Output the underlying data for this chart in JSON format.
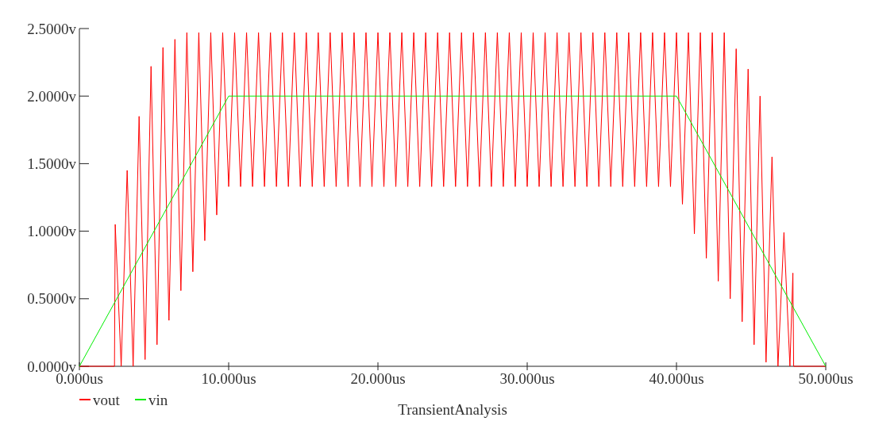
{
  "chart_data": {
    "type": "line",
    "xlabel": "TransientAnalysis",
    "legend": "bottom left",
    "grid": false,
    "line_style": "solid",
    "xlim": [
      0,
      50
    ],
    "xticks": [
      {
        "value": 0,
        "label": "0.000us"
      },
      {
        "value": 10,
        "label": "10.000us"
      },
      {
        "value": 20,
        "label": "20.000us"
      },
      {
        "value": 30,
        "label": "30.000us"
      },
      {
        "value": 40,
        "label": "40.000us"
      },
      {
        "value": 50,
        "label": "50.000us"
      }
    ],
    "ylim": [
      0,
      2.5
    ],
    "yticks": [
      {
        "value": 0,
        "label": "0.0000v"
      },
      {
        "value": 0.5,
        "label": "0.5000v"
      },
      {
        "value": 1,
        "label": "1.0000v"
      },
      {
        "value": 1.5,
        "label": "1.5000v"
      },
      {
        "value": 2,
        "label": "2.0000v"
      },
      {
        "value": 2.5,
        "label": "2.5000v"
      }
    ],
    "series": [
      {
        "name": "vout",
        "color": "#ff0000",
        "x": [
          0,
          2.35,
          2.4,
          2.8,
          3.2,
          3.6,
          4.0,
          4.4,
          4.8,
          5.2,
          5.6,
          6.0,
          6.4,
          6.8,
          7.2,
          7.6,
          8.0,
          8.4,
          8.8,
          9.2,
          9.6,
          10.0,
          10.4,
          10.8,
          11.2,
          11.6,
          12.0,
          12.4,
          12.8,
          13.2,
          13.6,
          14.0,
          14.4,
          14.8,
          15.2,
          15.6,
          16.0,
          16.4,
          16.8,
          17.2,
          17.6,
          18.0,
          18.4,
          18.8,
          19.2,
          19.6,
          20.0,
          20.4,
          20.8,
          21.2,
          21.6,
          22.0,
          22.4,
          22.8,
          23.2,
          23.6,
          24.0,
          24.4,
          24.8,
          25.2,
          25.6,
          26.0,
          26.4,
          26.8,
          27.2,
          27.6,
          28.0,
          28.4,
          28.8,
          29.2,
          29.6,
          30.0,
          30.4,
          30.8,
          31.2,
          31.6,
          32.0,
          32.4,
          32.8,
          33.2,
          33.6,
          34.0,
          34.4,
          34.8,
          35.2,
          35.6,
          36.0,
          36.4,
          36.8,
          37.2,
          37.6,
          38.0,
          38.4,
          38.8,
          39.2,
          39.6,
          40.0,
          40.4,
          40.8,
          41.2,
          41.6,
          42.0,
          42.4,
          42.8,
          43.2,
          43.6,
          44.0,
          44.4,
          44.8,
          45.2,
          45.6,
          46.0,
          46.4,
          46.8,
          47.2,
          47.6,
          47.8,
          47.85,
          50
        ],
        "values": [
          0,
          0,
          1.05,
          0,
          1.45,
          0,
          1.85,
          0.05,
          2.22,
          0.16,
          2.36,
          0.34,
          2.42,
          0.56,
          2.47,
          0.7,
          2.47,
          0.93,
          2.47,
          1.12,
          2.47,
          1.33,
          2.47,
          1.33,
          2.47,
          1.33,
          2.47,
          1.33,
          2.47,
          1.33,
          2.47,
          1.33,
          2.47,
          1.33,
          2.47,
          1.33,
          2.47,
          1.33,
          2.47,
          1.33,
          2.47,
          1.33,
          2.47,
          1.33,
          2.47,
          1.33,
          2.47,
          1.33,
          2.47,
          1.33,
          2.47,
          1.33,
          2.47,
          1.33,
          2.47,
          1.33,
          2.47,
          1.33,
          2.47,
          1.33,
          2.47,
          1.33,
          2.47,
          1.33,
          2.47,
          1.33,
          2.47,
          1.33,
          2.47,
          1.33,
          2.47,
          1.33,
          2.47,
          1.33,
          2.47,
          1.33,
          2.47,
          1.33,
          2.47,
          1.33,
          2.47,
          1.33,
          2.47,
          1.33,
          2.47,
          1.33,
          2.47,
          1.33,
          2.47,
          1.33,
          2.47,
          1.33,
          2.47,
          1.33,
          2.47,
          1.33,
          2.47,
          1.2,
          2.47,
          0.98,
          2.47,
          0.8,
          2.47,
          0.63,
          2.47,
          0.5,
          2.35,
          0.33,
          2.2,
          0.16,
          2.0,
          0.03,
          1.55,
          0,
          0.99,
          0,
          0.69,
          0,
          0
        ]
      },
      {
        "name": "vin",
        "color": "#00ee00",
        "x": [
          0,
          10,
          40,
          50
        ],
        "values": [
          0,
          2,
          2,
          0
        ]
      }
    ]
  }
}
